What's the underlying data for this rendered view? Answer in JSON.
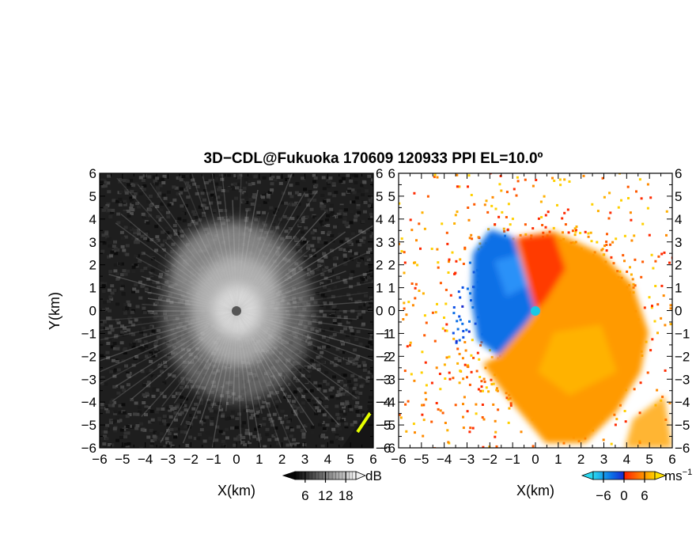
{
  "colors": {
    "reflectivity_low": "#0a0a0a",
    "reflectivity_high": "#e8e8e8",
    "velocity_negative": "#0b6fe6",
    "velocity_zero": "#ff2a00",
    "velocity_positive": "#ffb000",
    "radar_site_left": "#555555",
    "radar_site_right": "#19c8e6",
    "hard_target": "#e6ff00"
  },
  "chart_data": [
    {
      "type": "heatmap",
      "panel": "reflectivity",
      "title": "3D−CDL@Fukuoka 170609 120933 PPI EL=10.0º",
      "xlabel": "X(km)",
      "ylabel": "Y(km)",
      "xlim": [
        -6,
        6
      ],
      "ylim": [
        -6,
        6
      ],
      "xticks": [
        "−6",
        "−5",
        "−4",
        "−3",
        "−2",
        "−1",
        "0",
        "1",
        "2",
        "3",
        "4",
        "5",
        "6"
      ],
      "yticks": [
        "−6",
        "−5",
        "−4",
        "−3",
        "−2",
        "−1",
        "0",
        "1",
        "2",
        "3",
        "4",
        "5",
        "6"
      ],
      "colorbar": {
        "unit": "dB",
        "ticks": [
          "6",
          "12",
          "18"
        ],
        "range": [
          3,
          21
        ]
      },
      "radar_site": [
        0,
        0
      ]
    },
    {
      "type": "heatmap",
      "panel": "doppler_velocity",
      "xlabel": "X(km)",
      "xlim": [
        -6,
        6
      ],
      "ylim": [
        -6,
        6
      ],
      "xticks": [
        "−6",
        "−5",
        "−4",
        "−3",
        "−2",
        "−1",
        "0",
        "1",
        "2",
        "3",
        "4",
        "5",
        "6"
      ],
      "yticks": [
        "−6",
        "−5",
        "−4",
        "−3",
        "−2",
        "−1",
        "0",
        "1",
        "2",
        "3",
        "4",
        "5",
        "6"
      ],
      "colorbar": {
        "unit": "ms",
        "unit_exponent": "−1",
        "ticks": [
          "−6",
          "0",
          "6"
        ],
        "range": [
          -9,
          9
        ]
      },
      "radar_site": [
        0,
        0
      ]
    }
  ]
}
